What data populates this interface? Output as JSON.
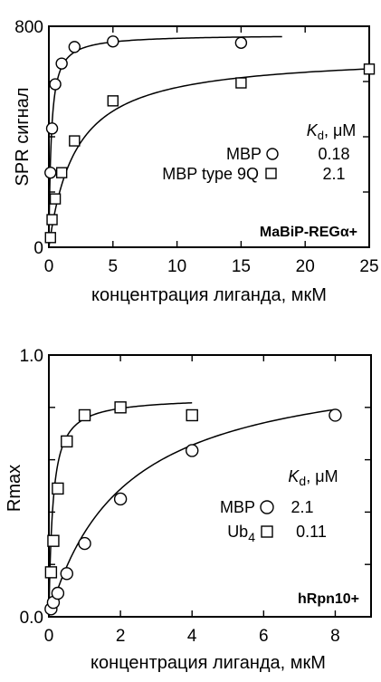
{
  "chart_data": [
    {
      "type": "scatter",
      "panel": "top",
      "xlabel": "концентрация лиганда, мкМ",
      "ylabel": "SPR сигнал",
      "xlim": [
        0,
        25
      ],
      "ylim": [
        0,
        800
      ],
      "xticks": [
        0,
        5,
        10,
        15,
        20,
        25
      ],
      "xtick_labels": [
        "0",
        "5",
        "10",
        "15",
        "20",
        "25"
      ],
      "yticks": [
        0,
        800
      ],
      "ytick_labels": [
        "0",
        "800"
      ],
      "grid": false,
      "legend_placement": "right",
      "legend_header_symbol": "K",
      "legend_header_sub": "d",
      "legend_header_unit": ", μM",
      "annotation": "MaBiP-REGα+",
      "series": [
        {
          "name": "MBP",
          "marker": "circle",
          "kd": "0.18",
          "x": [
            0.125,
            0.25,
            0.5,
            1.0,
            2.0,
            5.0,
            15.0
          ],
          "y": [
            270,
            430,
            590,
            665,
            725,
            745,
            740
          ],
          "fit": {
            "rmax": 770,
            "kd": 0.18,
            "xmax": 18.2
          }
        },
        {
          "name": "MBP type 9Q",
          "marker": "square",
          "kd": "2.1",
          "x": [
            0.125,
            0.25,
            0.5,
            1.0,
            2.0,
            5.0,
            15.0,
            25.0
          ],
          "y": [
            35,
            100,
            175,
            270,
            385,
            530,
            595,
            645
          ],
          "fit": {
            "rmax": 700,
            "kd": 2.1,
            "xmax": 25
          }
        }
      ]
    },
    {
      "type": "scatter",
      "panel": "bottom",
      "xlabel": "концентрация лиганда, мкМ",
      "ylabel": "Rmax",
      "xlim": [
        0,
        9
      ],
      "ylim": [
        0,
        1.0
      ],
      "xticks": [
        0,
        2,
        4,
        6,
        8
      ],
      "xtick_labels": [
        "0",
        "2",
        "4",
        "6",
        "8"
      ],
      "yticks": [
        0,
        1.0
      ],
      "ytick_labels": [
        "0.0",
        "1.0"
      ],
      "grid": false,
      "legend_placement": "right",
      "legend_header_symbol": "K",
      "legend_header_sub": "d",
      "legend_header_unit": ", μM",
      "annotation": "hRpn10+",
      "series": [
        {
          "name": "MBP",
          "name_sub": "",
          "marker": "circle",
          "kd": "2.1",
          "x": [
            0.06,
            0.125,
            0.25,
            0.5,
            1.0,
            2.0,
            4.0,
            8.0
          ],
          "y": [
            0.03,
            0.055,
            0.09,
            0.165,
            0.28,
            0.45,
            0.635,
            0.77
          ],
          "fit": {
            "rmax": 1.0,
            "kd": 2.1,
            "xmax": 8
          }
        },
        {
          "name": "Ub",
          "name_sub": "4",
          "marker": "square",
          "kd": "0.11",
          "x": [
            0.06,
            0.125,
            0.25,
            0.5,
            1.0,
            2.0,
            4.0
          ],
          "y": [
            0.17,
            0.29,
            0.49,
            0.67,
            0.77,
            0.8,
            0.77
          ],
          "fit": {
            "rmax": 0.84,
            "kd": 0.11,
            "xmax": 4
          }
        }
      ]
    }
  ]
}
